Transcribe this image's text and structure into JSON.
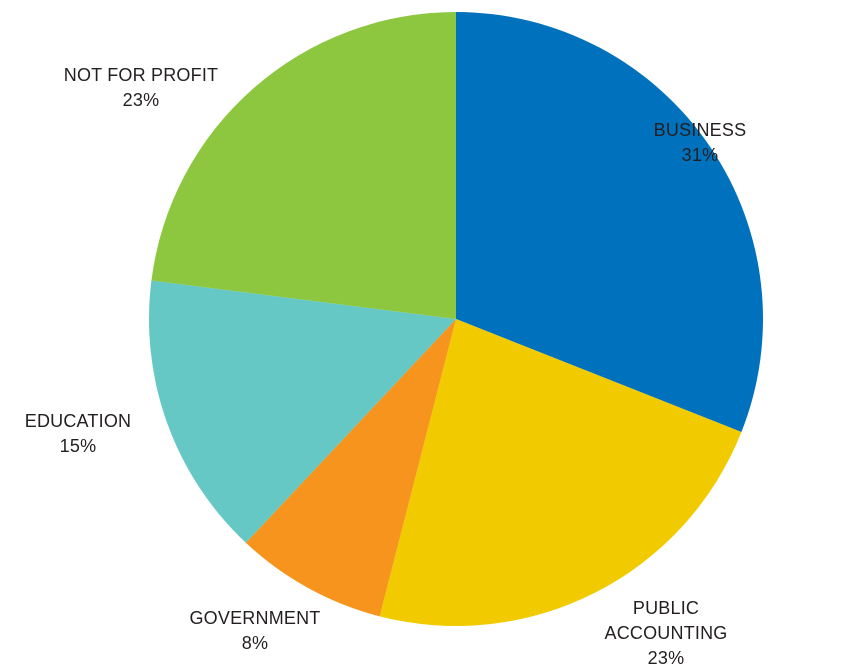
{
  "chart_data": {
    "type": "pie",
    "title": "",
    "start_angle_deg": 0,
    "direction": "clockwise",
    "slices": [
      {
        "name": "BUSINESS",
        "label_lines": [
          "BUSINESS"
        ],
        "value": 31,
        "value_label": "31%",
        "color": "#0071bc"
      },
      {
        "name": "PUBLIC ACCOUNTING",
        "label_lines": [
          "PUBLIC",
          "ACCOUNTING"
        ],
        "value": 23,
        "value_label": "23%",
        "color": "#f1cb00"
      },
      {
        "name": "GOVERNMENT",
        "label_lines": [
          "GOVERNMENT"
        ],
        "value": 8,
        "value_label": "8%",
        "color": "#f7941d"
      },
      {
        "name": "EDUCATION",
        "label_lines": [
          "EDUCATION"
        ],
        "value": 15,
        "value_label": "15%",
        "color": "#66c8c5"
      },
      {
        "name": "NOT FOR PROFIT",
        "label_lines": [
          "NOT FOR PROFIT"
        ],
        "value": 23,
        "value_label": "23%",
        "color": "#8dc63f"
      }
    ]
  }
}
